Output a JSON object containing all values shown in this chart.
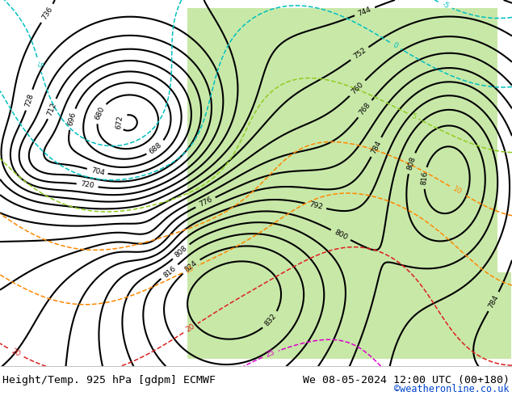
{
  "title_left": "Height/Temp. 925 hPa [gdpm] ECMWF",
  "title_right": "We 08-05-2024 12:00 UTC (00+180)",
  "credit": "©weatheronline.co.uk",
  "title_fontsize": 9.5,
  "credit_fontsize": 8.5,
  "background_color": "#ffffff",
  "fig_width": 6.34,
  "fig_height": 4.9,
  "dpi": 100
}
